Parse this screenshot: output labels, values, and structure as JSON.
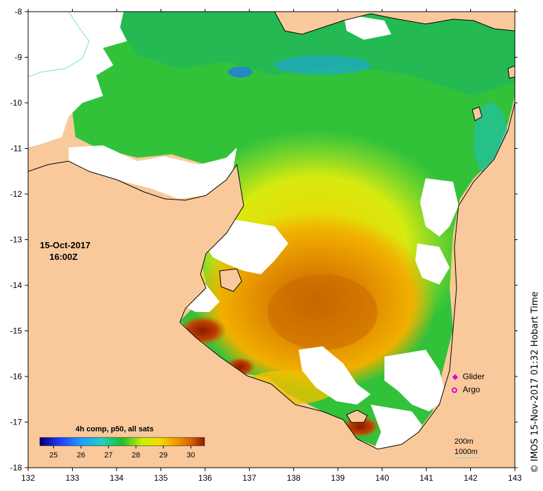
{
  "map": {
    "x_ticks": [
      "132",
      "133",
      "134",
      "135",
      "136",
      "137",
      "138",
      "139",
      "140",
      "141",
      "142",
      "143"
    ],
    "y_ticks": [
      "-8",
      "-9",
      "-10",
      "-11",
      "-12",
      "-13",
      "-14",
      "-15",
      "-16",
      "-17",
      "-18"
    ],
    "lon_range": [
      132,
      143
    ],
    "lat_range": [
      -18,
      -8
    ]
  },
  "stamp": {
    "date": "15-Oct-2017",
    "time": "16:00Z"
  },
  "colorbar": {
    "title": "4h comp, p50, all sats",
    "tick_labels": [
      "25",
      "26",
      "27",
      "28",
      "29",
      "30"
    ],
    "range": [
      24.5,
      30.5
    ]
  },
  "legend": {
    "glider": "Glider",
    "argo": "Argo",
    "marker_color": "#e000e0"
  },
  "depth_contours": {
    "shallow": "200m",
    "deep": "1000m",
    "contour_color": "#6fe0e0"
  },
  "credit": "© IMOS 15-Nov-2017 01:32 Hobart Time",
  "colors": {
    "land": "#f9c99c",
    "no_data": "#ffffff",
    "grid": "#000000"
  }
}
